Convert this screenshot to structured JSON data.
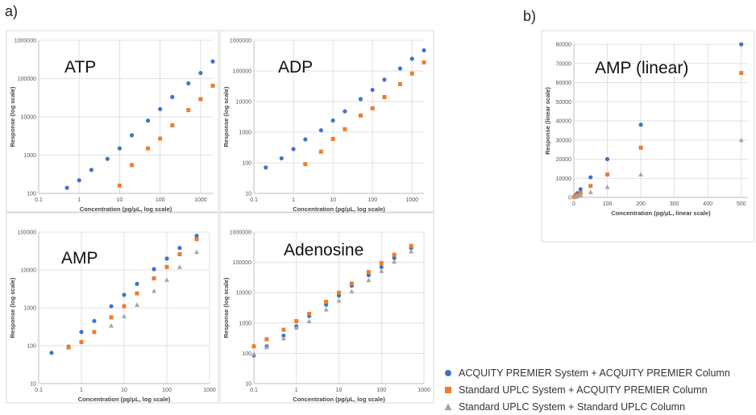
{
  "labels": {
    "a": "a)",
    "b": "b)"
  },
  "colors": {
    "premier": "#4472c4",
    "standard_premier": "#ed7d31",
    "standard": "#a5a5a5",
    "grid": "#d9d9d9",
    "frame": "#d9d9d9"
  },
  "legend": [
    {
      "name": "ACQUITY PREMIER System + ACQUITY PREMIER Column",
      "marker": "circle",
      "color": "#4472c4"
    },
    {
      "name": "Standard UPLC System + ACQUITY PREMIER Column",
      "marker": "square",
      "color": "#ed7d31"
    },
    {
      "name": "Standard UPLC System + Standard UPLC Column",
      "marker": "triangle",
      "color": "#a5a5a5"
    }
  ],
  "chart_data": [
    {
      "id": "atp",
      "type": "scatter",
      "title": "ATP",
      "xscale": "log",
      "yscale": "log",
      "xlabel": "Concentration (pg/μL, log scale)",
      "ylabel": "Response (log scale)",
      "xlim": [
        0.1,
        2000
      ],
      "ylim": [
        100,
        1000000
      ],
      "xticks": [
        0.1,
        1,
        10,
        100,
        1000
      ],
      "xticklabels": [
        "0.1",
        "1",
        "10",
        "100",
        "1000"
      ],
      "yticks": [
        100,
        1000,
        10000,
        100000,
        1000000
      ],
      "yticklabels": [
        "100",
        "1000",
        "10000",
        "100000",
        "1000000"
      ],
      "series": [
        {
          "name": "ACQUITY PREMIER System + ACQUITY PREMIER Column",
          "marker": "circle",
          "points": [
            [
              0.5,
              140
            ],
            [
              1,
              220
            ],
            [
              2,
              410
            ],
            [
              5,
              800
            ],
            [
              10,
              1500
            ],
            [
              20,
              3300
            ],
            [
              50,
              8000
            ],
            [
              100,
              16000
            ],
            [
              200,
              33000
            ],
            [
              500,
              75000
            ],
            [
              1000,
              140000
            ],
            [
              2000,
              280000
            ]
          ]
        },
        {
          "name": "Standard UPLC System + ACQUITY PREMIER Column",
          "marker": "square",
          "points": [
            [
              10,
              160
            ],
            [
              20,
              550
            ],
            [
              50,
              1500
            ],
            [
              100,
              2700
            ],
            [
              200,
              6000
            ],
            [
              500,
              15000
            ],
            [
              1000,
              29000
            ],
            [
              2000,
              65000
            ]
          ]
        }
      ]
    },
    {
      "id": "adp",
      "type": "scatter",
      "title": "ADP",
      "xscale": "log",
      "yscale": "log",
      "xlabel": "Concentration (pg/μL, log scale)",
      "ylabel": "Response (log scale)",
      "xlim": [
        0.1,
        2000
      ],
      "ylim": [
        10,
        1000000
      ],
      "xticks": [
        0.1,
        1,
        10,
        100,
        1000
      ],
      "xticklabels": [
        "0.1",
        "1",
        "10",
        "100",
        "1000"
      ],
      "yticks": [
        10,
        100,
        1000,
        10000,
        100000,
        1000000
      ],
      "yticklabels": [
        "10",
        "100",
        "1000",
        "10000",
        "100000",
        "1000000"
      ],
      "series": [
        {
          "name": "ACQUITY PREMIER System + ACQUITY PREMIER Column",
          "marker": "circle",
          "points": [
            [
              0.2,
              70
            ],
            [
              0.5,
              140
            ],
            [
              1,
              280
            ],
            [
              2,
              580
            ],
            [
              5,
              1150
            ],
            [
              10,
              2400
            ],
            [
              20,
              4800
            ],
            [
              50,
              12000
            ],
            [
              100,
              24000
            ],
            [
              200,
              52000
            ],
            [
              500,
              120000
            ],
            [
              1000,
              250000
            ],
            [
              2000,
              470000
            ]
          ]
        },
        {
          "name": "Standard UPLC System + ACQUITY PREMIER Column",
          "marker": "square",
          "points": [
            [
              2,
              90
            ],
            [
              5,
              230
            ],
            [
              10,
              600
            ],
            [
              20,
              1250
            ],
            [
              50,
              3500
            ],
            [
              100,
              6000
            ],
            [
              200,
              14000
            ],
            [
              500,
              37000
            ],
            [
              1000,
              82000
            ],
            [
              2000,
              190000
            ]
          ]
        }
      ]
    },
    {
      "id": "amp",
      "type": "scatter",
      "title": "AMP",
      "xscale": "log",
      "yscale": "log",
      "xlabel": "Concentration (pg/μL, log scale)",
      "ylabel": "Response (log scale)",
      "xlim": [
        0.1,
        1000
      ],
      "ylim": [
        10,
        100000
      ],
      "xticks": [
        0.1,
        1,
        10,
        100,
        1000
      ],
      "xticklabels": [
        "0.1",
        "1",
        "10",
        "100",
        "1000"
      ],
      "yticks": [
        10,
        100,
        1000,
        10000,
        100000
      ],
      "yticklabels": [
        "10",
        "100",
        "1000",
        "10000",
        "100000"
      ],
      "series": [
        {
          "name": "ACQUITY PREMIER System + ACQUITY PREMIER Column",
          "marker": "circle",
          "points": [
            [
              0.2,
              65
            ],
            [
              0.5,
              95
            ],
            [
              1,
              230
            ],
            [
              2,
              450
            ],
            [
              5,
              1100
            ],
            [
              10,
              2200
            ],
            [
              20,
              4300
            ],
            [
              50,
              10500
            ],
            [
              100,
              20000
            ],
            [
              200,
              38000
            ],
            [
              500,
              80000
            ]
          ]
        },
        {
          "name": "Standard UPLC System + ACQUITY PREMIER Column",
          "marker": "square",
          "points": [
            [
              0.5,
              90
            ],
            [
              1,
              125
            ],
            [
              2,
              230
            ],
            [
              5,
              560
            ],
            [
              10,
              1100
            ],
            [
              20,
              2400
            ],
            [
              50,
              6000
            ],
            [
              100,
              12000
            ],
            [
              200,
              26000
            ],
            [
              500,
              65000
            ]
          ]
        },
        {
          "name": "Standard UPLC System + Standard UPLC Column",
          "marker": "triangle",
          "points": [
            [
              5,
              340
            ],
            [
              10,
              600
            ],
            [
              20,
              1200
            ],
            [
              50,
              2800
            ],
            [
              100,
              5500
            ],
            [
              200,
              12000
            ],
            [
              500,
              30000
            ]
          ]
        }
      ]
    },
    {
      "id": "adenosine",
      "type": "scatter",
      "title": "Adenosine",
      "xscale": "log",
      "yscale": "log",
      "xlabel": "Concentration (pg/μL, log scale)",
      "ylabel": "Response (log scale)",
      "xlim": [
        0.1,
        1000
      ],
      "ylim": [
        10,
        1000000
      ],
      "xticks": [
        0.1,
        1,
        10,
        100,
        1000
      ],
      "xticklabels": [
        "0.1",
        "1",
        "10",
        "100",
        "1000"
      ],
      "yticks": [
        10,
        100,
        1000,
        10000,
        100000,
        1000000
      ],
      "yticklabels": [
        "10",
        "100",
        "1000",
        "10000",
        "100000",
        "1000000"
      ],
      "series": [
        {
          "name": "ACQUITY PREMIER System + ACQUITY PREMIER Column",
          "marker": "circle",
          "points": [
            [
              0.1,
              85
            ],
            [
              0.2,
              170
            ],
            [
              0.5,
              380
            ],
            [
              1,
              780
            ],
            [
              2,
              1700
            ],
            [
              5,
              4000
            ],
            [
              10,
              8000
            ],
            [
              20,
              17000
            ],
            [
              50,
              38000
            ],
            [
              100,
              70000
            ],
            [
              200,
              140000
            ],
            [
              500,
              300000
            ]
          ]
        },
        {
          "name": "Standard UPLC System + ACQUITY PREMIER Column",
          "marker": "square",
          "points": [
            [
              0.1,
              170
            ],
            [
              0.2,
              290
            ],
            [
              0.5,
              600
            ],
            [
              1,
              1150
            ],
            [
              2,
              2000
            ],
            [
              5,
              5000
            ],
            [
              10,
              10000
            ],
            [
              20,
              20000
            ],
            [
              50,
              48000
            ],
            [
              100,
              95000
            ],
            [
              200,
              180000
            ],
            [
              500,
              350000
            ]
          ]
        },
        {
          "name": "Standard UPLC System + Standard UPLC Column",
          "marker": "triangle",
          "points": [
            [
              0.1,
              95
            ],
            [
              0.2,
              160
            ],
            [
              0.5,
              310
            ],
            [
              1,
              700
            ],
            [
              2,
              1150
            ],
            [
              5,
              2800
            ],
            [
              10,
              5500
            ],
            [
              20,
              11000
            ],
            [
              50,
              26000
            ],
            [
              100,
              52000
            ],
            [
              200,
              105000
            ],
            [
              500,
              230000
            ]
          ]
        }
      ]
    },
    {
      "id": "amp-linear",
      "type": "scatter",
      "title": "AMP (linear)",
      "xscale": "linear",
      "yscale": "linear",
      "xlabel": "Concentration (pg/μL, linear scale)",
      "ylabel": "Response (linear scale)",
      "xlim": [
        0,
        520
      ],
      "ylim": [
        0,
        80000
      ],
      "xticks": [
        0,
        100,
        200,
        300,
        400,
        500
      ],
      "xticklabels": [
        "0",
        "100",
        "200",
        "300",
        "400",
        "500"
      ],
      "yticks": [
        0,
        10000,
        20000,
        30000,
        40000,
        50000,
        60000,
        70000,
        80000
      ],
      "yticklabels": [
        "0",
        "10000",
        "20000",
        "30000",
        "40000",
        "50000",
        "60000",
        "70000",
        "80000"
      ],
      "series": [
        {
          "name": "ACQUITY PREMIER System + ACQUITY PREMIER Column",
          "marker": "circle",
          "points": [
            [
              1,
              230
            ],
            [
              2,
              450
            ],
            [
              5,
              1100
            ],
            [
              10,
              2200
            ],
            [
              20,
              4300
            ],
            [
              50,
              10500
            ],
            [
              100,
              20000
            ],
            [
              200,
              38000
            ],
            [
              500,
              80000
            ]
          ]
        },
        {
          "name": "Standard UPLC System + ACQUITY PREMIER Column",
          "marker": "square",
          "points": [
            [
              1,
              125
            ],
            [
              2,
              230
            ],
            [
              5,
              560
            ],
            [
              10,
              1100
            ],
            [
              20,
              2400
            ],
            [
              50,
              6000
            ],
            [
              100,
              12000
            ],
            [
              200,
              26000
            ],
            [
              500,
              65000
            ]
          ]
        },
        {
          "name": "Standard UPLC System + Standard UPLC Column",
          "marker": "triangle",
          "points": [
            [
              5,
              340
            ],
            [
              10,
              600
            ],
            [
              20,
              1200
            ],
            [
              50,
              2800
            ],
            [
              100,
              5500
            ],
            [
              200,
              12000
            ],
            [
              500,
              30000
            ]
          ]
        }
      ]
    }
  ]
}
